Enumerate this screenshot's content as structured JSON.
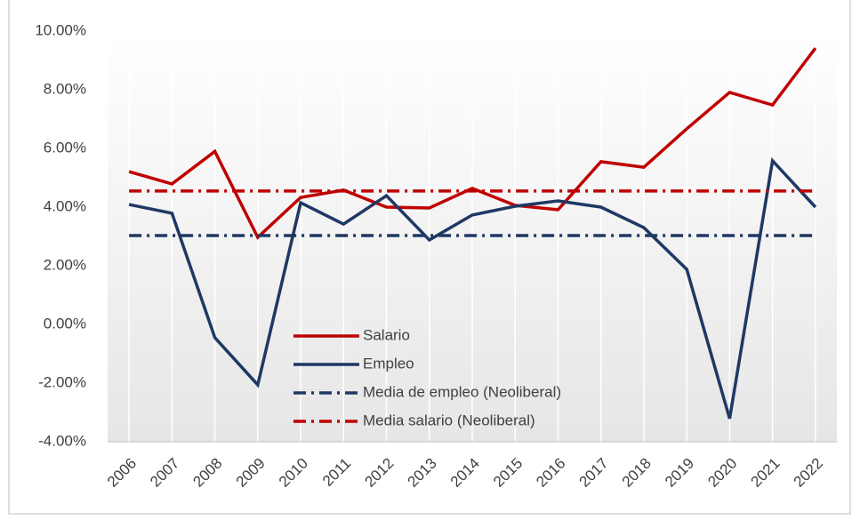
{
  "chart_data": {
    "type": "line",
    "categories": [
      "2006",
      "2007",
      "2008",
      "2009",
      "2010",
      "2011",
      "2012",
      "2013",
      "2014",
      "2015",
      "2016",
      "2017",
      "2018",
      "2019",
      "2020",
      "2021",
      "2022"
    ],
    "series": [
      {
        "name": "Salario",
        "color": "#c00000",
        "dash": "solid",
        "values": [
          5.21,
          4.79,
          5.9,
          2.97,
          4.33,
          4.58,
          4.0,
          3.97,
          4.64,
          4.06,
          3.91,
          5.55,
          5.36,
          6.67,
          7.91,
          7.48,
          9.42
        ]
      },
      {
        "name": "Empleo",
        "color": "#1f3864",
        "dash": "solid",
        "values": [
          4.09,
          3.79,
          -0.45,
          -2.06,
          4.15,
          3.42,
          4.39,
          2.88,
          3.73,
          4.03,
          4.21,
          4.0,
          3.3,
          1.88,
          -3.21,
          5.58,
          4.0
        ]
      },
      {
        "name": "Media de empleo (Neoliberal)",
        "color": "#1f3864",
        "dash": "dashdot",
        "values": [
          3.03,
          3.03,
          3.03,
          3.03,
          3.03,
          3.03,
          3.03,
          3.03,
          3.03,
          3.03,
          3.03,
          3.03,
          3.03,
          3.03,
          3.03,
          3.03,
          3.03
        ]
      },
      {
        "name": "Media salario (Neoliberal)",
        "color": "#c00000",
        "dash": "dashdot",
        "values": [
          4.55,
          4.55,
          4.55,
          4.55,
          4.55,
          4.55,
          4.55,
          4.55,
          4.55,
          4.55,
          4.55,
          4.55,
          4.55,
          4.55,
          4.55,
          4.55,
          4.55
        ]
      }
    ],
    "ylim": [
      -4,
      10
    ],
    "yticks": [
      {
        "value": -4,
        "label": "-4.00%"
      },
      {
        "value": -2,
        "label": "-2.00%"
      },
      {
        "value": 0,
        "label": "0.00%"
      },
      {
        "value": 2,
        "label": "2.00%"
      },
      {
        "value": 4,
        "label": "4.00%"
      },
      {
        "value": 6,
        "label": "6.00%"
      },
      {
        "value": 8,
        "label": "8.00%"
      },
      {
        "value": 10,
        "label": "10.00%"
      }
    ],
    "grid": "vertical",
    "legend": "bottom-center"
  }
}
